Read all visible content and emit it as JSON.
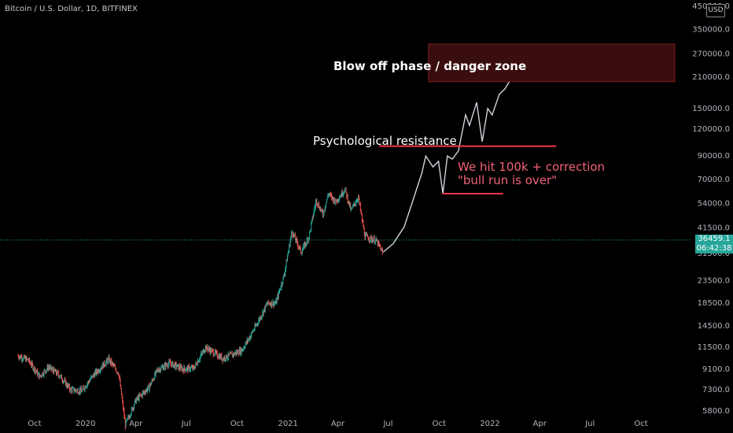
{
  "header": {
    "title": "Bitcoin / U.S. Dollar, 1D, BITFINEX",
    "currency": "USD"
  },
  "price_tag": {
    "price": "36459.1",
    "countdown": "06:42:38",
    "bg": "#26a69a"
  },
  "annotations": {
    "blowoff": "Blow off phase / danger zone",
    "psych": "Psychological resistance",
    "hit_line1": "We hit 100k + correction",
    "hit_line2": "\"bull run is over\""
  },
  "colors": {
    "up": "#26a69a",
    "down": "#ef5350",
    "projection": "#d1d4dc",
    "resistance": "#f23645",
    "zone_fill": "#3a0d0e",
    "zone_border": "#7a2020",
    "axis_text": "#b2b5be"
  },
  "chart_data": {
    "type": "line",
    "scale": "log",
    "title": "Bitcoin / U.S. Dollar, 1D, BITFINEX",
    "y_ticks": [
      450000,
      350000,
      270000,
      210000,
      150000,
      120000,
      90000,
      70000,
      54000,
      41500,
      31500,
      23500,
      18500,
      14500,
      11500,
      9100,
      7300,
      5800
    ],
    "y_tick_labels": [
      "450000.0",
      "350000.0",
      "270000.0",
      "210000.0",
      "150000.0",
      "120000.0",
      "90000.0",
      "70000.0",
      "54000.0",
      "41500.0",
      "31500.0",
      "23500.0",
      "18500.0",
      "14500.0",
      "11500.0",
      "9100.0",
      "7300.0",
      "5800.0"
    ],
    "x_ticks": [
      "2019-10-01",
      "2020-01-01",
      "2020-04-01",
      "2020-07-01",
      "2020-10-01",
      "2021-01-01",
      "2021-04-01",
      "2021-07-01",
      "2021-10-01",
      "2022-01-01",
      "2022-04-01",
      "2022-07-01",
      "2022-10-01"
    ],
    "x_tick_labels": [
      "Oct",
      "2020",
      "Apr",
      "Jul",
      "Oct",
      "2021",
      "Apr",
      "Jul",
      "Oct",
      "2022",
      "Apr",
      "Jul",
      "Oct"
    ],
    "current_price": 36459.1,
    "series": [
      {
        "kind": "candles-approx",
        "x": [
          "2019-09-01",
          "2019-09-20",
          "2019-10-10",
          "2019-10-26",
          "2019-11-15",
          "2019-12-05",
          "2019-12-25",
          "2020-01-15",
          "2020-02-12",
          "2020-03-01",
          "2020-03-13",
          "2020-04-01",
          "2020-04-25",
          "2020-05-10",
          "2020-06-01",
          "2020-06-25",
          "2020-07-15",
          "2020-08-05",
          "2020-09-05",
          "2020-09-25",
          "2020-10-10",
          "2020-10-25",
          "2020-11-10",
          "2020-11-25",
          "2020-12-10",
          "2020-12-25",
          "2021-01-08",
          "2021-01-25",
          "2021-02-08",
          "2021-02-21",
          "2021-03-05",
          "2021-03-15",
          "2021-03-28",
          "2021-04-14",
          "2021-04-25",
          "2021-05-08",
          "2021-05-20",
          "2021-06-10",
          "2021-06-22"
        ],
        "values": [
          10500,
          10000,
          8400,
          9300,
          8500,
          7300,
          7200,
          8500,
          10100,
          8700,
          5000,
          6500,
          7500,
          9000,
          9700,
          9100,
          9200,
          11500,
          10200,
          10700,
          11200,
          13000,
          15500,
          18500,
          18500,
          25000,
          40000,
          32000,
          38000,
          56000,
          48000,
          60000,
          55000,
          63000,
          50000,
          58000,
          38000,
          36000,
          31500
        ]
      },
      {
        "kind": "projection",
        "x": [
          "2021-06-22",
          "2021-07-10",
          "2021-07-30",
          "2021-08-15",
          "2021-08-31",
          "2021-09-07",
          "2021-09-20",
          "2021-09-30",
          "2021-10-08",
          "2021-10-16",
          "2021-10-25",
          "2021-11-05",
          "2021-11-18",
          "2021-11-25",
          "2021-12-08",
          "2021-12-18",
          "2021-12-28",
          "2022-01-05",
          "2022-01-18",
          "2022-01-28",
          "2022-02-05",
          "2022-02-12"
        ],
        "values": [
          32000,
          35000,
          42000,
          56000,
          75000,
          90000,
          80000,
          85000,
          60000,
          90000,
          87000,
          95000,
          140000,
          125000,
          160000,
          105000,
          150000,
          140000,
          175000,
          185000,
          200000,
          205000
        ]
      }
    ],
    "annotations": [
      {
        "text": "Blow off phase / danger zone",
        "kind": "zone",
        "x_from": "2021-09-12",
        "x_to": "2022-12-01",
        "y_from": 200000,
        "y_to": 300000
      },
      {
        "text": "Psychological resistance",
        "kind": "hline",
        "x_from": "2021-06-15",
        "x_to": "2022-05-01",
        "y": 100000
      },
      {
        "text": "We hit 100k + correction \"bull run is over\"",
        "kind": "hline",
        "x_from": "2021-10-07",
        "x_to": "2022-01-25",
        "y": 60000
      }
    ]
  }
}
